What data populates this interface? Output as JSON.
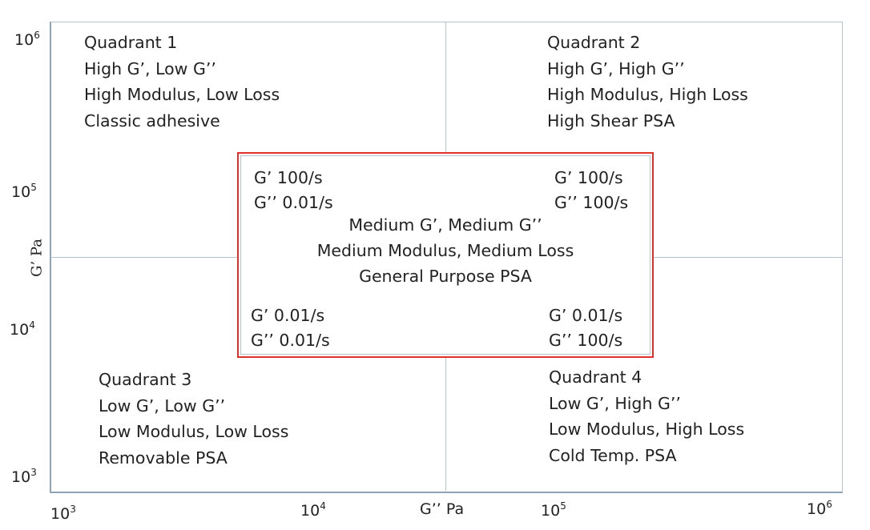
{
  "axes": {
    "y_label": "G’ Pa",
    "x_label": "G’’ Pa",
    "y_ticks": [
      {
        "base": "10",
        "exp": "6"
      },
      {
        "base": "10",
        "exp": "5"
      },
      {
        "base": "10",
        "exp": "4"
      },
      {
        "base": "10",
        "exp": "3"
      }
    ],
    "x_ticks": [
      {
        "base": "10",
        "exp": "3"
      },
      {
        "base": "10",
        "exp": "4"
      },
      {
        "base": "10",
        "exp": "5"
      },
      {
        "base": "10",
        "exp": "6"
      }
    ],
    "line_color": "#b5c3d1"
  },
  "quadrants": {
    "q1": [
      "Quadrant 1",
      "High G’, Low G’’",
      "High Modulus, Low Loss",
      "Classic adhesive"
    ],
    "q2": [
      "Quadrant 2",
      "High G’, High G’’",
      "High Modulus, High Loss",
      "High Shear PSA"
    ],
    "q3": [
      "Quadrant 3",
      "Low G’, Low G’’",
      "Low Modulus, Low Loss",
      "Removable PSA"
    ],
    "q4": [
      "Quadrant 4",
      "Low G’, High G’’",
      "Low Modulus, High Loss",
      "Cold Temp. PSA"
    ]
  },
  "center": {
    "border_color": "#e0302a",
    "top_left": [
      "G’ 100/s",
      "G’’ 0.01/s"
    ],
    "top_right": [
      "G’ 100/s",
      "G’’ 100/s"
    ],
    "bottom_left": [
      "G’ 0.01/s",
      "G’’ 0.01/s"
    ],
    "bottom_right": [
      "G’ 0.01/s",
      "G’’ 100/s"
    ],
    "middle": [
      "Medium G’, Medium G’’",
      "Medium Modulus, Medium Loss",
      "General Purpose PSA"
    ]
  }
}
